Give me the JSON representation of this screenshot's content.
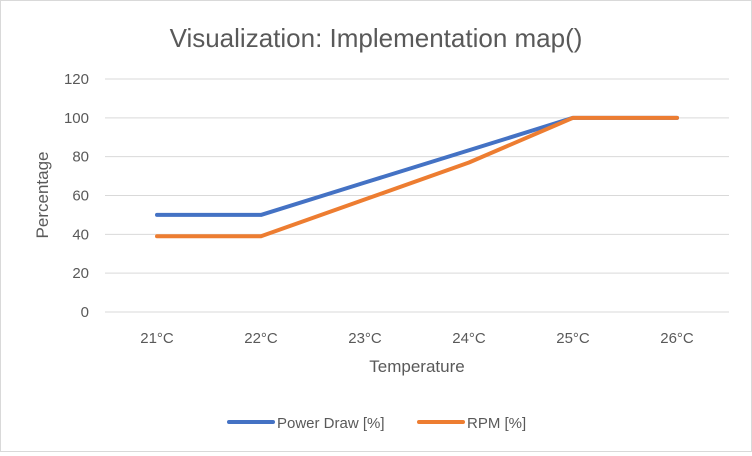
{
  "chart_data": {
    "type": "line",
    "title": "Visualization: Implementation map()",
    "xlabel": "Temperature",
    "ylabel": "Percentage",
    "categories": [
      "21°C",
      "22°C",
      "23°C",
      "24°C",
      "25°C",
      "26°C"
    ],
    "ylim": [
      0,
      120
    ],
    "yticks": [
      0,
      20,
      40,
      60,
      80,
      100,
      120
    ],
    "grid": true,
    "legend_position": "bottom",
    "series": [
      {
        "name": "Power Draw [%]",
        "color": "#4472C4",
        "values": [
          50,
          50,
          66.7,
          83.3,
          100,
          100
        ]
      },
      {
        "name": "RPM [%]",
        "color": "#ED7D31",
        "values": [
          39,
          39,
          58,
          77,
          100,
          100
        ]
      }
    ]
  }
}
